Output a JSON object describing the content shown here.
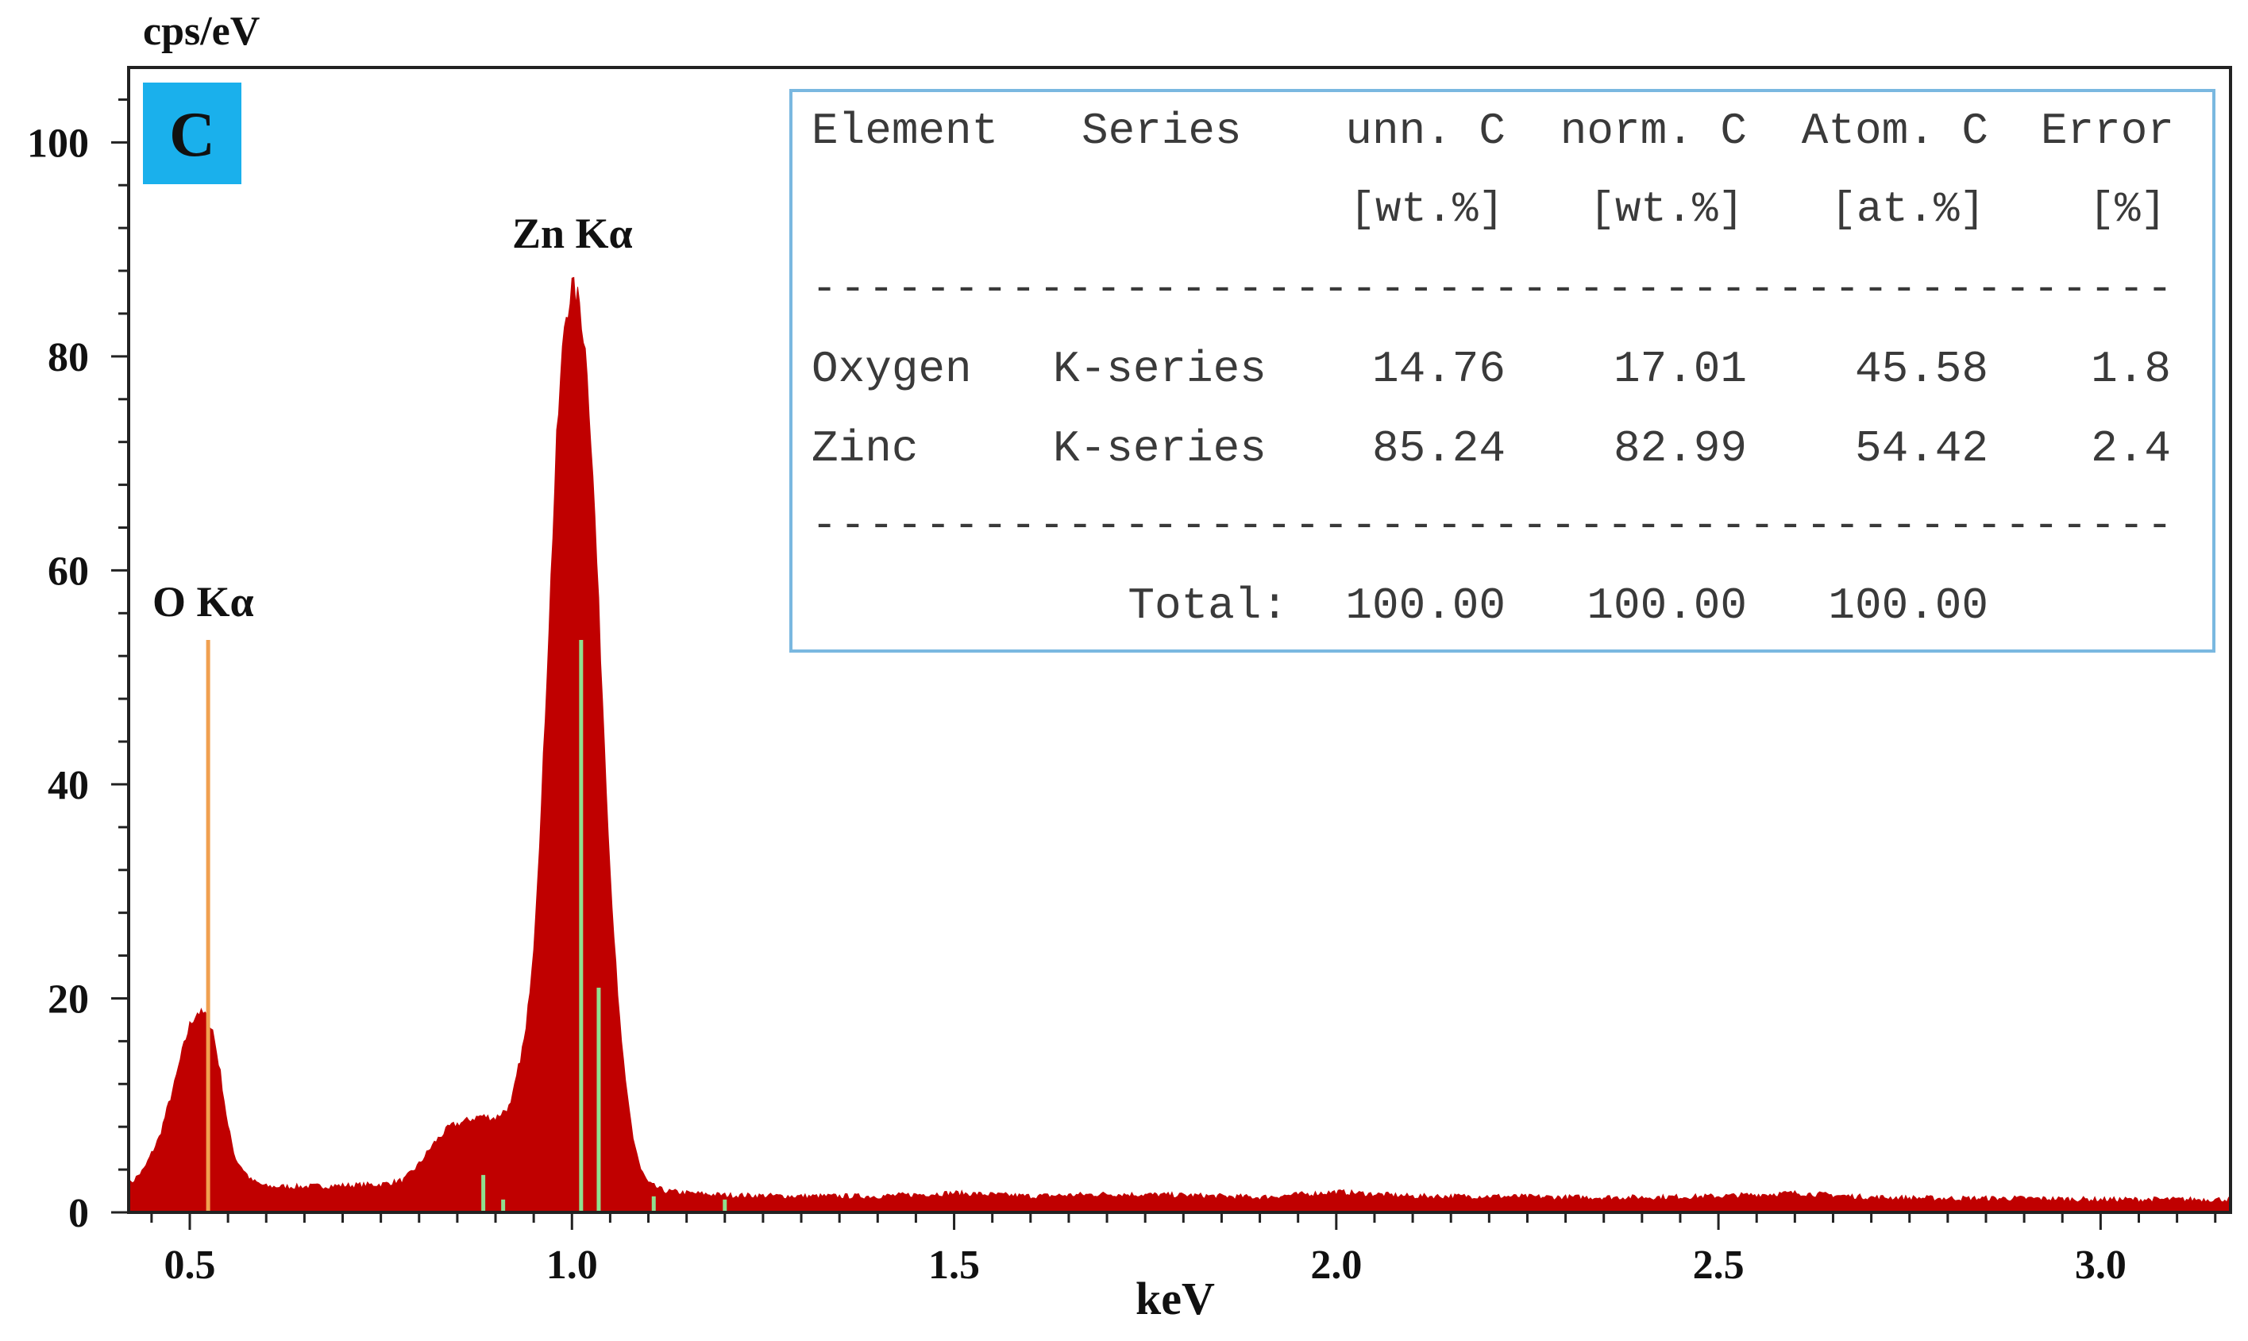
{
  "colors": {
    "spectrum": "#c00000",
    "o_marker": "#f0a050",
    "zn_marker": "#8fe08f",
    "panel_badge": "#1ab0ec",
    "table_border": "#7ab8e0"
  },
  "panel_label": "C",
  "chart_data": {
    "type": "area",
    "title": "",
    "xlabel": "keV",
    "ylabel": "cps/eV",
    "xlim": [
      0.42,
      3.17
    ],
    "ylim": [
      0,
      107
    ],
    "xticks": [
      0.5,
      1.0,
      1.5,
      2.0,
      2.5,
      3.0
    ],
    "xtick_labels": [
      "0.5",
      "1.0",
      "1.5",
      "2.0",
      "2.5",
      "3.0"
    ],
    "yticks": [
      0,
      20,
      40,
      60,
      80,
      100
    ],
    "ytick_labels": [
      "0",
      "20",
      "40",
      "60",
      "80",
      "100"
    ],
    "grid": false,
    "legend": "none",
    "peaks": [
      {
        "label": "O Kα",
        "energy": 0.52,
        "cps": 18.7
      },
      {
        "label": "Zn Kα",
        "energy": 1.012,
        "cps": 86.5
      }
    ],
    "series": [
      {
        "x": [
          0.42,
          0.44,
          0.46,
          0.48,
          0.49,
          0.5,
          0.51,
          0.52,
          0.53,
          0.54,
          0.55,
          0.56,
          0.58,
          0.6,
          0.65,
          0.7,
          0.75,
          0.78,
          0.8,
          0.82,
          0.84,
          0.86,
          0.88,
          0.9,
          0.92,
          0.94,
          0.95,
          0.96,
          0.97,
          0.98,
          0.99,
          1.0,
          1.01,
          1.02,
          1.03,
          1.04,
          1.05,
          1.06,
          1.07,
          1.08,
          1.09,
          1.1,
          1.12,
          1.15,
          1.2,
          1.3,
          1.4,
          1.5,
          1.6,
          1.7,
          1.8,
          1.9,
          2.0,
          2.1,
          2.2,
          2.3,
          2.4,
          2.5,
          2.6,
          2.7,
          2.8,
          2.9,
          3.0,
          3.1,
          3.17
        ],
        "values": [
          2.5,
          4,
          7,
          12,
          15,
          17.5,
          18.7,
          18.5,
          17,
          13,
          8,
          5,
          3,
          2.4,
          2.4,
          2.5,
          2.6,
          3,
          4.5,
          6.5,
          8,
          8.5,
          9,
          8.8,
          10,
          17,
          25,
          38,
          55,
          72,
          83,
          86.5,
          85,
          79,
          65,
          48,
          32,
          20,
          12,
          7,
          4,
          2.7,
          2,
          1.8,
          1.6,
          1.5,
          1.5,
          1.8,
          1.5,
          1.7,
          1.6,
          1.4,
          1.9,
          1.5,
          1.5,
          1.4,
          1.4,
          1.5,
          1.8,
          1.4,
          1.3,
          1.3,
          1.2,
          1.2,
          1.2
        ]
      }
    ],
    "marker_lines": [
      {
        "element": "O",
        "energy": 0.524,
        "cps": 53.5
      },
      {
        "element": "Zn",
        "energy": 0.884,
        "cps": 3.5
      },
      {
        "element": "Zn",
        "energy": 0.91,
        "cps": 1.2
      },
      {
        "element": "Zn",
        "energy": 1.012,
        "cps": 53.5
      },
      {
        "element": "Zn",
        "energy": 1.035,
        "cps": 21
      },
      {
        "element": "Zn",
        "energy": 1.107,
        "cps": 1.5
      },
      {
        "element": "Zn",
        "energy": 1.2,
        "cps": 1.2
      }
    ]
  },
  "table": {
    "headers": [
      "Element",
      "Series",
      "unn. C",
      "norm. C",
      "Atom. C",
      "Error"
    ],
    "units": [
      "",
      "",
      "[wt.%]",
      "[wt.%]",
      "[at.%]",
      "[%]"
    ],
    "separator": "------------------------------------------------",
    "rows": [
      [
        "Oxygen",
        "K-series",
        "14.76",
        "17.01",
        "45.58",
        "1.8"
      ],
      [
        "Zinc",
        "K-series",
        "85.24",
        "82.99",
        "54.42",
        "2.4"
      ]
    ],
    "total_label": "Total:",
    "totals": [
      "100.00",
      "100.00",
      "100.00"
    ]
  }
}
